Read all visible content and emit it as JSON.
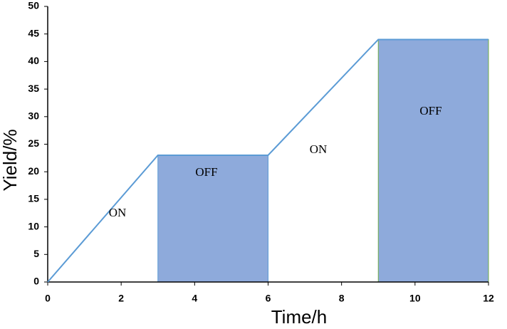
{
  "chart_data": {
    "type": "line",
    "x_label": "Time/h",
    "y_label": "Yield/%",
    "x": [
      0,
      3,
      6,
      9,
      12
    ],
    "series": [
      {
        "color": "#5b9bd5",
        "values": [
          0,
          23,
          23,
          44,
          44
        ]
      }
    ],
    "shaded": [
      {
        "x": [
          3,
          6
        ],
        "value": 23,
        "color": "#8eaadb",
        "edge": "#5b9bd5"
      },
      {
        "x": [
          9,
          12
        ],
        "value": 44,
        "color": "#8eaadb",
        "edge": "#70ad47"
      }
    ],
    "annotations": [
      "ON",
      "OFF",
      "ON",
      "OFF"
    ],
    "xlim": [
      0,
      12
    ],
    "xticks": [
      0,
      2,
      4,
      6,
      8,
      10,
      12
    ],
    "ylim": [
      0,
      50
    ],
    "yticks": [
      0,
      5,
      10,
      15,
      20,
      25,
      30,
      35,
      40,
      45,
      50
    ],
    "grid": false
  }
}
